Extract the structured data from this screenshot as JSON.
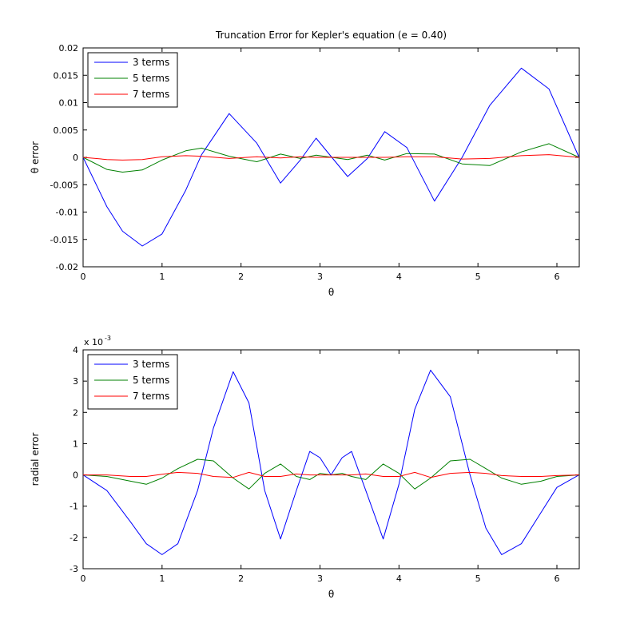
{
  "chart_data": [
    {
      "type": "line",
      "title": "Truncation Error for Kepler's equation (e = 0.40)",
      "xlabel": "θ",
      "ylabel": "θ error",
      "exponent_label": "",
      "xlim": [
        0,
        6.2832
      ],
      "ylim": [
        -0.02,
        0.02
      ],
      "xticks": [
        0,
        1,
        2,
        3,
        4,
        5,
        6
      ],
      "xtick_labels": [
        "0",
        "1",
        "2",
        "3",
        "4",
        "5",
        "6"
      ],
      "yticks": [
        -0.02,
        -0.015,
        -0.01,
        -0.005,
        0,
        0.005,
        0.01,
        0.015,
        0.02
      ],
      "ytick_labels": [
        "-0.02",
        "-0.015",
        "-0.01",
        "-0.005",
        "0",
        "0.005",
        "0.01",
        "0.015",
        "0.02"
      ],
      "grid": false,
      "legend_position": "top-left",
      "x": [
        0,
        0.3,
        0.5,
        0.75,
        1.0,
        1.3,
        1.5,
        1.85,
        2.2,
        2.5,
        2.75,
        2.95,
        3.15,
        3.35,
        3.6,
        3.82,
        4.1,
        4.45,
        4.8,
        5.15,
        5.55,
        5.9,
        6.28
      ],
      "series": [
        {
          "name": "3 terms",
          "color": "#0000ff",
          "values": [
            0,
            -0.009,
            -0.0135,
            -0.0162,
            -0.014,
            -0.006,
            0.0005,
            0.008,
            0.0026,
            -0.0047,
            -0.0005,
            0.0035,
            0.0,
            -0.0035,
            -0.0002,
            0.0047,
            0.0018,
            -0.008,
            0.0,
            0.0095,
            0.0163,
            0.0125,
            0.0
          ]
        },
        {
          "name": "5 terms",
          "color": "#008000",
          "values": [
            0,
            -0.0022,
            -0.0027,
            -0.0023,
            -0.0005,
            0.0012,
            0.0017,
            0.0002,
            -0.0008,
            0.0006,
            -0.0002,
            0.0004,
            0.0,
            -0.0004,
            0.0004,
            -0.0005,
            0.0007,
            0.0006,
            -0.0012,
            -0.0015,
            0.001,
            0.0025,
            0.0
          ]
        },
        {
          "name": "7 terms",
          "color": "#ff0000",
          "values": [
            0,
            -0.0004,
            -0.0005,
            -0.0004,
            0.0001,
            0.0003,
            0.0002,
            -0.0002,
            0.0001,
            -0.0001,
            0.0001,
            0.0,
            0.0,
            0.0,
            0.0,
            0.0,
            0.0001,
            0.0001,
            -0.0003,
            -0.0002,
            0.0003,
            0.0005,
            0.0
          ]
        }
      ]
    },
    {
      "type": "line",
      "title": "",
      "xlabel": "θ",
      "ylabel": "radial error",
      "exponent_label": "x 10",
      "exponent_power": "-3",
      "xlim": [
        0,
        6.2832
      ],
      "ylim": [
        -3,
        4
      ],
      "xticks": [
        0,
        1,
        2,
        3,
        4,
        5,
        6
      ],
      "xtick_labels": [
        "0",
        "1",
        "2",
        "3",
        "4",
        "5",
        "6"
      ],
      "yticks": [
        -3,
        -2,
        -1,
        0,
        1,
        2,
        3,
        4
      ],
      "ytick_labels": [
        "-3",
        "-2",
        "-1",
        "0",
        "1",
        "2",
        "3",
        "4"
      ],
      "grid": false,
      "legend_position": "top-left",
      "x": [
        0,
        0.3,
        0.6,
        0.8,
        1.0,
        1.2,
        1.45,
        1.65,
        1.9,
        2.1,
        2.3,
        2.5,
        2.7,
        2.87,
        3.0,
        3.14,
        3.28,
        3.4,
        3.58,
        3.8,
        4.0,
        4.2,
        4.4,
        4.65,
        4.9,
        5.1,
        5.3,
        5.55,
        5.8,
        6.0,
        6.28
      ],
      "series": [
        {
          "name": "3 terms",
          "color": "#0000ff",
          "values": [
            0,
            -0.5,
            -1.5,
            -2.2,
            -2.55,
            -2.2,
            -0.5,
            1.5,
            3.3,
            2.3,
            -0.5,
            -2.05,
            -0.5,
            0.75,
            0.55,
            0.0,
            0.55,
            0.75,
            -0.5,
            -2.05,
            -0.3,
            2.1,
            3.35,
            2.5,
            0.0,
            -1.7,
            -2.55,
            -2.2,
            -1.2,
            -0.4,
            0
          ]
        },
        {
          "name": "5 terms",
          "color": "#008000",
          "values": [
            0,
            -0.05,
            -0.2,
            -0.3,
            -0.1,
            0.2,
            0.5,
            0.45,
            -0.1,
            -0.45,
            0.05,
            0.35,
            -0.05,
            -0.15,
            0.05,
            0.0,
            0.05,
            -0.05,
            -0.15,
            0.35,
            0.05,
            -0.45,
            -0.1,
            0.45,
            0.5,
            0.2,
            -0.1,
            -0.3,
            -0.2,
            -0.05,
            0
          ]
        },
        {
          "name": "7 terms",
          "color": "#ff0000",
          "values": [
            0,
            0.0,
            -0.05,
            -0.05,
            0.02,
            0.08,
            0.05,
            -0.05,
            -0.08,
            0.08,
            -0.05,
            -0.05,
            0.03,
            0.0,
            0.0,
            0.0,
            0.0,
            0.0,
            0.03,
            -0.05,
            -0.05,
            0.08,
            -0.08,
            0.05,
            0.08,
            0.05,
            -0.02,
            -0.05,
            -0.05,
            -0.02,
            0
          ]
        }
      ]
    }
  ]
}
